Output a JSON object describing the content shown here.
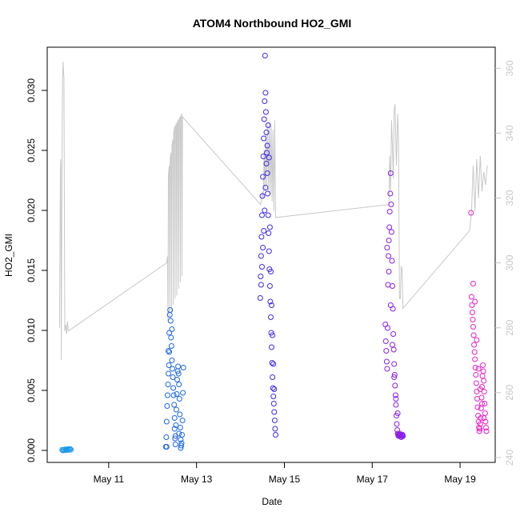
{
  "chart_data": {
    "type": "scatter",
    "title": "ATOM4 Northbound HO2_GMI",
    "xlabel": "Date",
    "ylabel": "HO2_GMI",
    "x_range_days": [
      9.6,
      19.8
    ],
    "ylim": [
      -0.001,
      0.0336
    ],
    "y2lim": [
      238.5,
      366.5
    ],
    "x_ticks": [
      {
        "value": 11,
        "label": "May 11"
      },
      {
        "value": 13,
        "label": "May 13"
      },
      {
        "value": 15,
        "label": "May 15"
      },
      {
        "value": 17,
        "label": "May 17"
      },
      {
        "value": 19,
        "label": "May 19"
      }
    ],
    "y_ticks": [
      {
        "value": 0.0,
        "label": "0.000"
      },
      {
        "value": 0.005,
        "label": "0.005"
      },
      {
        "value": 0.01,
        "label": "0.010"
      },
      {
        "value": 0.015,
        "label": "0.015"
      },
      {
        "value": 0.02,
        "label": "0.020"
      },
      {
        "value": 0.025,
        "label": "0.025"
      },
      {
        "value": 0.03,
        "label": "0.030"
      }
    ],
    "y2_ticks": [
      {
        "value": 240,
        "label": "240"
      },
      {
        "value": 260,
        "label": "260"
      },
      {
        "value": 280,
        "label": "280"
      },
      {
        "value": 300,
        "label": "300"
      },
      {
        "value": 320,
        "label": "320"
      },
      {
        "value": 340,
        "label": "340"
      },
      {
        "value": 360,
        "label": "360"
      }
    ],
    "series": [
      {
        "color": "#1a9ae8",
        "x": [
          9.94,
          9.96,
          9.98,
          10.0,
          10.02,
          10.04,
          10.06,
          10.08,
          10.1,
          10.12,
          10.14
        ],
        "y": [
          5e-05,
          0.0,
          3e-05,
          8e-05,
          2e-05,
          6e-05,
          0.0001,
          4e-05,
          0.0001,
          0.00012,
          6e-05
        ]
      },
      {
        "color": "#1f67e6",
        "x": [
          12.3,
          12.31,
          12.32,
          12.33,
          12.34,
          12.35,
          12.36,
          12.37,
          12.38,
          12.38,
          12.39,
          12.4,
          12.41,
          12.42,
          12.43,
          12.44,
          12.45,
          12.46,
          12.47,
          12.48,
          12.49,
          12.5,
          12.5,
          12.51,
          12.52,
          12.53,
          12.54,
          12.55,
          12.56,
          12.57,
          12.58,
          12.59,
          12.6,
          12.61,
          12.62,
          12.63,
          12.64,
          12.65,
          12.66,
          12.67,
          12.68,
          12.69,
          12.7,
          12.32,
          12.36,
          12.44,
          12.52,
          12.6,
          12.64
        ],
        "y": [
          0.0003,
          0.0011,
          0.0024,
          0.0037,
          0.0046,
          0.0055,
          0.0064,
          0.0071,
          0.0082,
          0.0098,
          0.0113,
          0.0117,
          0.0108,
          0.0094,
          0.0087,
          0.0075,
          0.0068,
          0.0061,
          0.0052,
          0.0046,
          0.0038,
          0.0027,
          0.0018,
          0.001,
          0.0012,
          0.0021,
          0.0034,
          0.0047,
          0.0059,
          0.0066,
          0.007,
          0.0064,
          0.0055,
          0.0043,
          0.003,
          0.0019,
          0.0009,
          0.0004,
          0.0006,
          0.0013,
          0.0025,
          0.0048,
          0.0069,
          0.0003,
          0.0083,
          0.0101,
          0.0005,
          0.0014,
          0.0002
        ]
      },
      {
        "color": "#3c2cec",
        "x": [
          14.45,
          14.46,
          14.47,
          14.48,
          14.49,
          14.5,
          14.51,
          14.52,
          14.53,
          14.54,
          14.55,
          14.56,
          14.57,
          14.58,
          14.59,
          14.6,
          14.61,
          14.62,
          14.63,
          14.64,
          14.65,
          14.66,
          14.67,
          14.68,
          14.69,
          14.7,
          14.71,
          14.72,
          14.73,
          14.74,
          14.75,
          14.76,
          14.77,
          14.78,
          14.79,
          14.8,
          14.47,
          14.49,
          14.51,
          14.53,
          14.55,
          14.57,
          14.59,
          14.61,
          14.63,
          14.65,
          14.67,
          14.69,
          14.71,
          14.73,
          14.75,
          14.77
        ],
        "y": [
          0.0127,
          0.0145,
          0.0162,
          0.0178,
          0.0196,
          0.0212,
          0.0228,
          0.0245,
          0.026,
          0.0276,
          0.0291,
          0.0329,
          0.0298,
          0.0282,
          0.0265,
          0.0248,
          0.0231,
          0.0214,
          0.0196,
          0.0181,
          0.0166,
          0.0151,
          0.0137,
          0.0124,
          0.0111,
          0.0098,
          0.0086,
          0.0073,
          0.0061,
          0.0052,
          0.0045,
          0.0039,
          0.0032,
          0.0025,
          0.0018,
          0.0013,
          0.0138,
          0.0153,
          0.0169,
          0.0183,
          0.02,
          0.0219,
          0.0239,
          0.0254,
          0.0271,
          0.0244,
          0.0186,
          0.0149,
          0.0121,
          0.0096,
          0.0072,
          0.0051
        ]
      },
      {
        "color": "#8a20e8",
        "x": [
          17.3,
          17.31,
          17.32,
          17.33,
          17.34,
          17.35,
          17.36,
          17.37,
          17.38,
          17.39,
          17.4,
          17.41,
          17.42,
          17.43,
          17.44,
          17.45,
          17.46,
          17.47,
          17.48,
          17.49,
          17.5,
          17.51,
          17.52,
          17.53,
          17.54,
          17.55,
          17.56,
          17.57,
          17.58,
          17.59,
          17.6,
          17.61,
          17.62,
          17.63,
          17.64,
          17.65,
          17.66,
          17.67,
          17.68,
          17.69,
          17.7,
          17.34,
          17.38,
          17.42,
          17.46,
          17.5,
          17.54,
          17.58
        ],
        "y": [
          0.0105,
          0.0091,
          0.0083,
          0.0074,
          0.0068,
          0.0102,
          0.0138,
          0.0162,
          0.0175,
          0.0186,
          0.0199,
          0.0214,
          0.0231,
          0.0205,
          0.0182,
          0.0158,
          0.0137,
          0.0118,
          0.0097,
          0.0084,
          0.0072,
          0.0063,
          0.0054,
          0.0046,
          0.0038,
          0.0029,
          0.0022,
          0.0017,
          0.0014,
          0.0013,
          0.0012,
          0.0013,
          0.0012,
          0.0014,
          0.0013,
          0.0012,
          0.0011,
          0.0013,
          0.0012,
          0.0013,
          0.0012,
          0.0169,
          0.0149,
          0.0121,
          0.0088,
          0.0061,
          0.0043,
          0.0031
        ]
      },
      {
        "color": "#e822c6",
        "x": [
          19.25,
          19.26,
          19.27,
          19.28,
          19.29,
          19.3,
          19.31,
          19.32,
          19.33,
          19.34,
          19.35,
          19.36,
          19.37,
          19.38,
          19.39,
          19.4,
          19.41,
          19.42,
          19.43,
          19.44,
          19.45,
          19.46,
          19.47,
          19.48,
          19.49,
          19.5,
          19.51,
          19.52,
          19.53,
          19.54,
          19.55,
          19.56,
          19.57,
          19.58,
          19.59,
          19.6,
          19.3,
          19.34,
          19.38,
          19.42,
          19.46,
          19.5,
          19.54
        ],
        "y": [
          0.0198,
          0.0128,
          0.0121,
          0.0115,
          0.0109,
          0.0103,
          0.0096,
          0.0088,
          0.0082,
          0.0076,
          0.0069,
          0.0063,
          0.0056,
          0.0049,
          0.0043,
          0.0036,
          0.0029,
          0.0024,
          0.0019,
          0.0016,
          0.0018,
          0.0022,
          0.0027,
          0.0035,
          0.0044,
          0.0053,
          0.0062,
          0.0071,
          0.0066,
          0.0058,
          0.0049,
          0.0039,
          0.0031,
          0.0024,
          0.0019,
          0.0016,
          0.0139,
          0.0124,
          0.0092,
          0.0068,
          0.0051,
          0.0039,
          0.0027
        ]
      }
    ],
    "secondary_line": {
      "color": "#c8c8c8",
      "x": [
        9.88,
        9.9,
        9.91,
        9.92,
        9.94,
        9.95,
        9.96,
        9.98,
        10.0,
        10.02,
        10.04,
        10.06,
        10.08,
        12.32,
        12.34,
        12.35,
        12.36,
        12.38,
        12.39,
        12.4,
        12.42,
        12.43,
        12.44,
        12.46,
        12.47,
        12.48,
        12.5,
        12.51,
        12.52,
        12.54,
        12.55,
        12.56,
        12.58,
        12.59,
        12.6,
        12.62,
        12.63,
        12.64,
        12.66,
        12.67,
        12.68,
        14.46,
        14.5,
        14.52,
        14.54,
        14.56,
        14.58,
        14.6,
        14.62,
        14.64,
        14.66,
        14.68,
        14.7,
        14.72,
        14.74,
        14.76,
        14.78,
        14.8,
        17.38,
        17.4,
        17.42,
        17.44,
        17.46,
        17.48,
        17.5,
        17.52,
        17.55,
        17.58,
        17.6,
        17.62,
        17.64,
        17.66,
        17.68,
        17.7,
        19.22,
        19.26,
        19.3,
        19.34,
        19.38,
        19.42,
        19.46,
        19.5,
        19.54,
        19.58,
        19.62
      ],
      "y": [
        280,
        330,
        332,
        270,
        340,
        356,
        362,
        357,
        279,
        281,
        278,
        282,
        279,
        300,
        302,
        282,
        327,
        330,
        283,
        332,
        334,
        285,
        336,
        338,
        287,
        340,
        342,
        289,
        342,
        343,
        290,
        343,
        344,
        292,
        344,
        345,
        294,
        345,
        346,
        296,
        345,
        318,
        322,
        320,
        335,
        322,
        340,
        324,
        343,
        322,
        343,
        321,
        342,
        319,
        341,
        316,
        344,
        314,
        318,
        333,
        322,
        344,
        336,
        326,
        347,
        349,
        330,
        346,
        338,
        289,
        289,
        299,
        298,
        286,
        310,
        316,
        330,
        316,
        332,
        320,
        333,
        322,
        328,
        324,
        330
      ]
    }
  }
}
